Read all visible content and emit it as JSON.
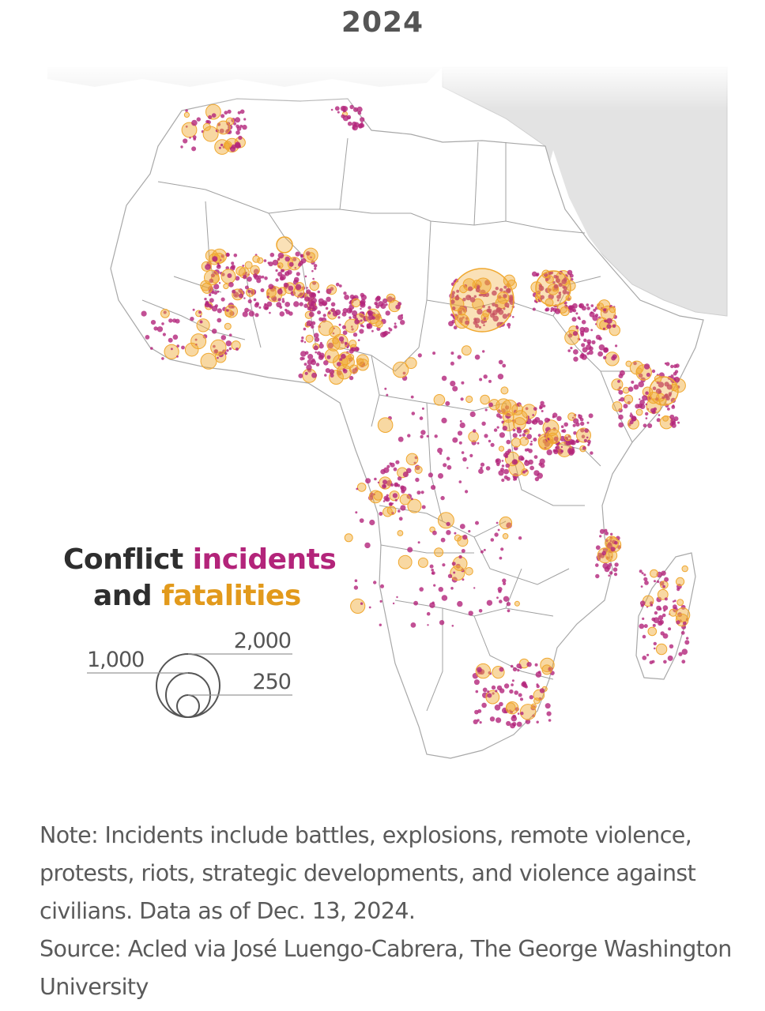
{
  "title": "2024",
  "legend": {
    "title_part1": "Conflict ",
    "title_incidents": "incidents",
    "title_part2": "and ",
    "title_fatalities": "fatalities",
    "size_labels": [
      "1,000",
      "2,000",
      "250"
    ]
  },
  "note": "Note: Incidents include battles, explosions, remote violence, protests, riots, strategic developments, and violence against civilians. Data as of Dec. 13, 2024.",
  "source": "Source: Acled via José Luengo-Cabrera, The George Washington University",
  "colors": {
    "incidents": "#b3247a",
    "fatalities": "#f0a830",
    "land": "#ffffff",
    "non_africa_land": "#e3e3e3",
    "borders": "#9a9a9a"
  }
}
